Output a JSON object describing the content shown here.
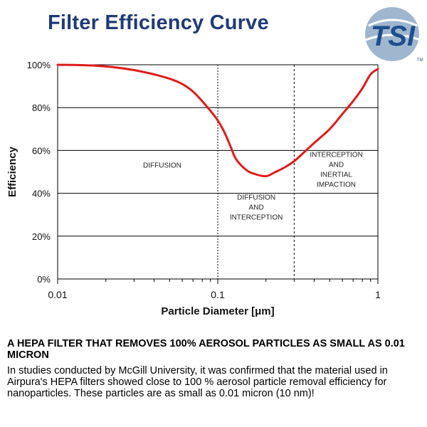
{
  "page": {
    "title": "Filter Efficiency Curve",
    "logo_text": "TSI",
    "logo_tm": "TM",
    "headline": "A HEPA FILTER THAT REMOVES 100% AEROSOL PARTICLES AS SMALL AS 0.01 MICRON",
    "body": "In studies conducted by McGill University, it was confirmed that the material used in Airpura's HEPA filters showed close to 100 % aerosol particle removal efficiency for nanoparticles. These particles are as small as 0.01 micron (10 nm)!",
    "colors": {
      "title": "#1f3b78",
      "curve": "#e01b1b",
      "logo_blue": "#1f4e8c"
    }
  },
  "chart_data": {
    "type": "line",
    "title": "Filter Efficiency Curve",
    "xlabel": "Particle Diameter [μm]",
    "ylabel": "Efficiency",
    "x_scale": "log",
    "xlim": [
      0.01,
      1
    ],
    "ylim": [
      0,
      100
    ],
    "x_ticks": [
      "0.01",
      "0.1",
      "1"
    ],
    "y_ticks": [
      "0%",
      "20%",
      "40%",
      "60%",
      "80%",
      "100%"
    ],
    "grid": "horizontal",
    "series": [
      {
        "color": "#e01b1b",
        "x": [
          0.01,
          0.013,
          0.017,
          0.022,
          0.03,
          0.04,
          0.05,
          0.06,
          0.07,
          0.08,
          0.09,
          0.1,
          0.11,
          0.12,
          0.13,
          0.15,
          0.17,
          0.2,
          0.23,
          0.26,
          0.3,
          0.35,
          0.4,
          0.5,
          0.6,
          0.7,
          0.8,
          0.9,
          1.0
        ],
        "y": [
          100,
          99.9,
          99.6,
          98.9,
          97.5,
          95.5,
          93.5,
          91,
          87.5,
          83,
          78.5,
          74,
          68.5,
          62,
          56,
          51,
          49,
          48,
          50,
          52,
          55,
          59.5,
          63.5,
          70,
          77,
          83,
          89,
          95.5,
          98
        ]
      }
    ],
    "dividers": [
      0.1,
      0.3
    ],
    "regions": [
      {
        "lines": [
          "DIFFUSION"
        ],
        "x": 0.045,
        "y": 52
      },
      {
        "lines": [
          "DIFFUSION",
          "AND",
          "INTERCEPTION"
        ],
        "x": 0.174,
        "y": 37
      },
      {
        "lines": [
          "INTERCEPTION",
          "AND",
          "INERTIAL",
          "IMPACTION"
        ],
        "x": 0.55,
        "y": 57
      }
    ]
  }
}
